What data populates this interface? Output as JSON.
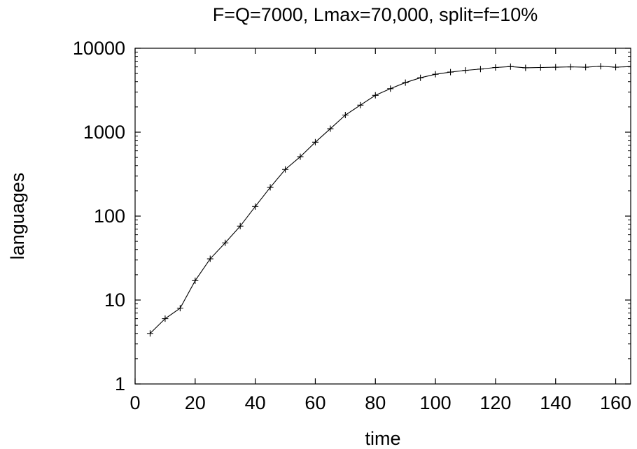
{
  "chart_data": {
    "type": "line",
    "title": "F=Q=7000, Lmax=70,000, split=f=10%",
    "xlabel": "time",
    "ylabel": "languages",
    "xlim": [
      0,
      165
    ],
    "ylim": [
      1,
      10000
    ],
    "yscale": "log",
    "grid": false,
    "x_ticks": [
      0,
      20,
      40,
      60,
      80,
      100,
      120,
      140,
      160
    ],
    "y_ticks": [
      1,
      10,
      100,
      1000,
      10000
    ],
    "x_tick_labels": [
      "0",
      "20",
      "40",
      "60",
      "80",
      "100",
      "120",
      "140",
      "160"
    ],
    "y_tick_labels": [
      "1",
      "10",
      "100",
      "1000",
      "10000"
    ],
    "series": [
      {
        "marker": "plus",
        "color": "#000000",
        "x": [
          5,
          10,
          15,
          20,
          25,
          30,
          35,
          40,
          45,
          50,
          55,
          60,
          65,
          70,
          75,
          80,
          85,
          90,
          95,
          100,
          105,
          110,
          115,
          120,
          125,
          130,
          135,
          140,
          145,
          150,
          155,
          160,
          165
        ],
        "y": [
          4,
          6,
          8,
          17,
          31,
          48,
          76,
          130,
          220,
          360,
          510,
          760,
          1100,
          1600,
          2100,
          2750,
          3300,
          3900,
          4450,
          4900,
          5200,
          5450,
          5650,
          5900,
          6050,
          5850,
          5900,
          5950,
          6000,
          5950,
          6100,
          5950,
          6050
        ]
      }
    ]
  }
}
